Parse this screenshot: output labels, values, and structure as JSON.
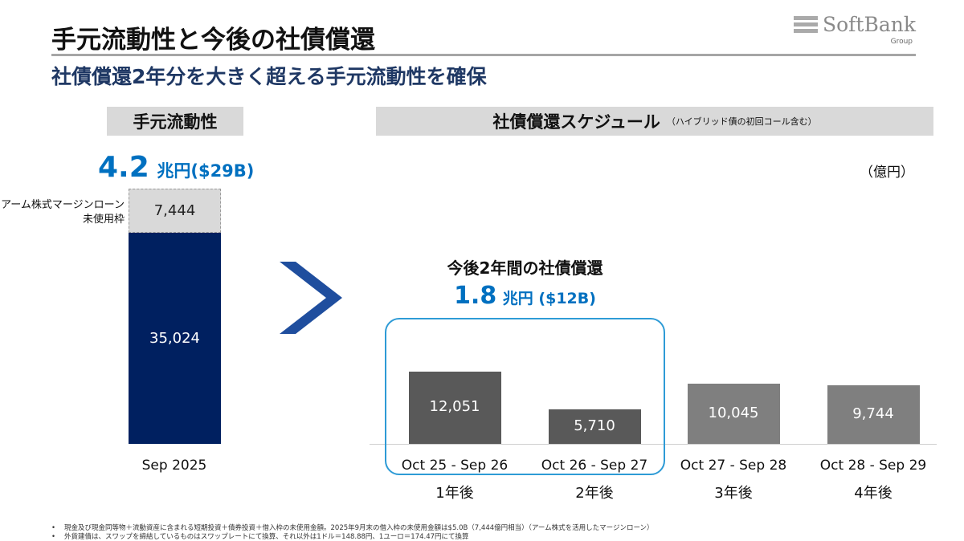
{
  "header": {
    "title": "手元流動性と今後の社債償還",
    "subtitle": "社債償還2年分を大きく超える手元流動性を確保",
    "logo_text": "SoftBank",
    "logo_sub": "Group"
  },
  "liquidity": {
    "heading": "手元流動性",
    "total_value": "4.2",
    "total_unit": "兆円($29B)",
    "arm_label_line1": "アーム株式マージンローン",
    "arm_label_line2": "未使用枠",
    "arm_value": "7,444",
    "cash_value": "35,024",
    "xlabel": "Sep 2025"
  },
  "schedule": {
    "heading": "社債償還スケジュール",
    "heading_note": "（ハイブリッド債の初回コール含む）",
    "unit": "（億円）",
    "highlight_title": "今後2年間の社債償還",
    "highlight_value": "1.8",
    "highlight_unit": "兆円 ($12B)"
  },
  "chart_data": [
    {
      "type": "bar",
      "stacked": true,
      "categories": [
        "Sep 2025"
      ],
      "series": [
        {
          "name": "",
          "values": [
            35024
          ],
          "color": "#002060"
        },
        {
          "name": "アーム株式マージンローン未使用枠",
          "values": [
            7444
          ],
          "color": "#d9d9d9"
        }
      ],
      "title": "手元流動性"
    },
    {
      "type": "bar",
      "categories": [
        "Oct 25 - Sep 26",
        "Oct 26 - Sep 27",
        "Oct 27 - Sep 28",
        "Oct 28 - Sep 29"
      ],
      "year_labels": [
        "1年後",
        "2年後",
        "3年後",
        "4年後"
      ],
      "values": [
        12051,
        5710,
        10045,
        9744
      ],
      "labels": [
        "12,051",
        "5,710",
        "10,045",
        "9,744"
      ],
      "colors": [
        "#595959",
        "#595959",
        "#7f7f7f",
        "#7f7f7f"
      ],
      "title": "社債償還スケジュール",
      "ylabel": "（億円）",
      "ylim": [
        0,
        42468
      ]
    }
  ],
  "footnotes": [
    "現金及び現金同等物＋流動資産に含まれる短期投資＋債券投資＋借入枠の未使用金額。2025年9月末の借入枠の未使用金額は$5.0B（7,444億円相当）（アーム株式を活用したマージンローン）",
    "外貨建債は、スワップを締結しているものはスワップレートにて換算、それ以外は1ドル＝148.88円、1ユーロ＝174.47円にて換算"
  ],
  "colors": {
    "accent_blue": "#0070c0",
    "navy": "#002060",
    "highlight_border": "#2e9bd6",
    "arrow": "#1f4e9e"
  }
}
